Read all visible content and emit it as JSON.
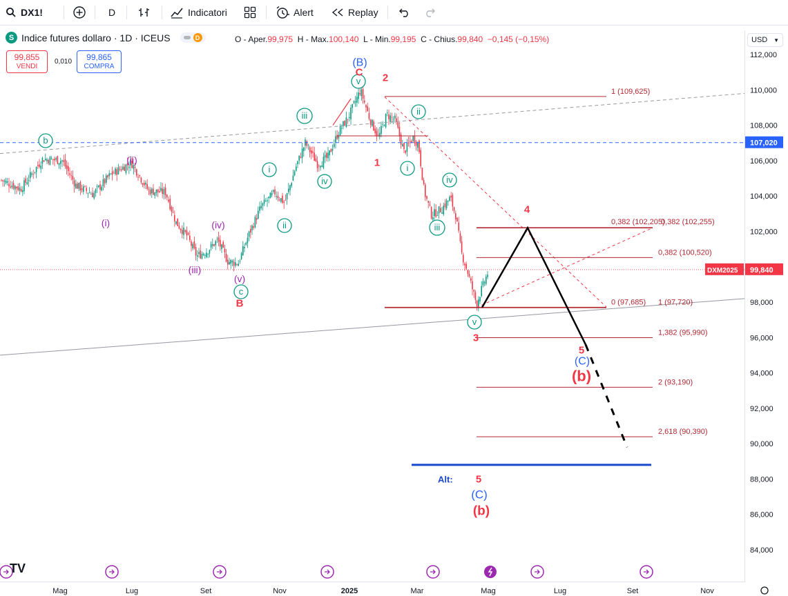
{
  "toolbar": {
    "symbol": "DX1!",
    "interval": "D",
    "indicators_label": "Indicatori",
    "alert_label": "Alert",
    "replay_label": "Replay"
  },
  "legend": {
    "badge": "S",
    "title": "Indice futures dollaro · 1D · ICEUS",
    "delay_badge": "D",
    "open_label": "O - Aper.",
    "open": "99,975",
    "high_label": "H - Max.",
    "high": "100,140",
    "low_label": "L - Min.",
    "low": "99,195",
    "close_label": "C - Chius.",
    "close": "99,840",
    "change": "−0,145 (−0,15%)"
  },
  "trade": {
    "sell_price": "99,855",
    "sell_label": "VENDI",
    "spread": "0,010",
    "buy_price": "99,865",
    "buy_label": "COMPRA"
  },
  "axis": {
    "currency": "USD",
    "price_ticks": [
      "112,000",
      "110,000",
      "108,000",
      "106,000",
      "104,000",
      "102,000",
      "100,000",
      "98,000",
      "96,000",
      "94,000",
      "92,000",
      "90,000",
      "88,000",
      "86,000",
      "84,000"
    ],
    "current_label": "DXM2025",
    "current_price": "99,840",
    "marker_price": "107,020",
    "time_ticks": [
      "Mag",
      "Lug",
      "Set",
      "Nov",
      "2025",
      "Mar",
      "Mag",
      "Lug",
      "Set",
      "Nov"
    ]
  },
  "chart_data": {
    "type": "line",
    "title": "Indice futures dollaro · 1D · ICEUS",
    "ylim": [
      83,
      113
    ],
    "y_unit": "USD",
    "price_series_approx": [
      {
        "date": "2024-04",
        "close": 105.0
      },
      {
        "date": "2024-04-28",
        "close": 106.1
      },
      {
        "date": "2024-06",
        "close": 104.5
      },
      {
        "date": "2024-06-25",
        "close": 105.9
      },
      {
        "date": "2024-08",
        "close": 102.9
      },
      {
        "date": "2024-08-27",
        "close": 100.6
      },
      {
        "date": "2024-09-27",
        "close": 100.2
      },
      {
        "date": "2024-10-30",
        "close": 104.1
      },
      {
        "date": "2024-11-20",
        "close": 106.8
      },
      {
        "date": "2024-12-05",
        "close": 105.7
      },
      {
        "date": "2025-01-13",
        "close": 110.0
      },
      {
        "date": "2025-02-03",
        "close": 109.3
      },
      {
        "date": "2025-03-03",
        "close": 106.7
      },
      {
        "date": "2025-03-20",
        "close": 103.7
      },
      {
        "date": "2025-04-10",
        "close": 100.8
      },
      {
        "date": "2025-04-21",
        "close": 97.9
      },
      {
        "date": "2025-04-30",
        "close": 99.84
      }
    ],
    "fib_levels": [
      {
        "label": "1 (109,625)",
        "value": 109.625
      },
      {
        "label": "0,382 (102,205)",
        "value": 102.205
      },
      {
        "label": "0,382 (102,255)",
        "value": 102.255
      },
      {
        "label": "0,382 (100,520)",
        "value": 100.52
      },
      {
        "label": "0 (97,685)",
        "value": 97.685
      },
      {
        "label": "1 (97,720)",
        "value": 97.72
      },
      {
        "label": "1,382 (95,990)",
        "value": 95.99
      },
      {
        "label": "2 (93,190)",
        "value": 93.19
      },
      {
        "label": "2,618 (90,390)",
        "value": 90.39
      }
    ],
    "alt_target": {
      "label": "Alt:",
      "value": 88.8
    },
    "wave_labels": [
      {
        "text": "b",
        "style": "teal-circle"
      },
      {
        "text": "(i)",
        "style": "purple"
      },
      {
        "text": "(ii)",
        "style": "purple"
      },
      {
        "text": "(iii)",
        "style": "purple"
      },
      {
        "text": "(iv)",
        "style": "purple"
      },
      {
        "text": "(v)",
        "style": "purple"
      },
      {
        "text": "c",
        "style": "teal-circle"
      },
      {
        "text": "B",
        "style": "red"
      },
      {
        "text": "i",
        "style": "teal-circle"
      },
      {
        "text": "ii",
        "style": "teal-circle"
      },
      {
        "text": "iii",
        "style": "teal-circle"
      },
      {
        "text": "iv",
        "style": "teal-circle"
      },
      {
        "text": "v",
        "style": "teal-circle"
      },
      {
        "text": "(B)",
        "style": "blue"
      },
      {
        "text": "C",
        "style": "red"
      },
      {
        "text": "1",
        "style": "red"
      },
      {
        "text": "2",
        "style": "red"
      },
      {
        "text": "i",
        "style": "teal-circle"
      },
      {
        "text": "ii",
        "style": "teal-circle"
      },
      {
        "text": "iii",
        "style": "teal-circle"
      },
      {
        "text": "iv",
        "style": "teal-circle"
      },
      {
        "text": "v",
        "style": "teal-circle"
      },
      {
        "text": "3",
        "style": "red"
      },
      {
        "text": "4",
        "style": "red"
      },
      {
        "text": "5",
        "style": "red"
      },
      {
        "text": "(C)",
        "style": "blue"
      },
      {
        "text": "(b)",
        "style": "red-bold"
      }
    ],
    "projection": {
      "wave4": 102.2,
      "wave5": 95.6,
      "extension": 89.8
    },
    "colors": {
      "up": "#089981",
      "down": "#f23645",
      "fib": "#b22833",
      "wave_teal": "#089981",
      "wave_purple": "#9c27b0",
      "wave_red": "#f23645",
      "blue": "#2962ff",
      "alt_line": "#1848cc"
    }
  }
}
